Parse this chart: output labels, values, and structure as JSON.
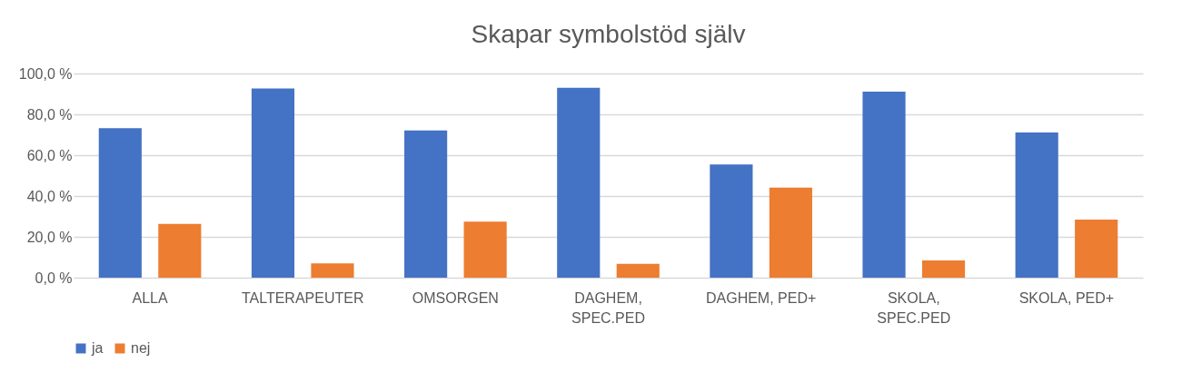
{
  "chart_data": {
    "type": "bar",
    "title": "Skapar symbolstöd själv",
    "categories": [
      "ALLA",
      "TALTERAPEUTER",
      "OMSORGEN",
      "DAGHEM, SPEC.PED",
      "DAGHEM, PED+",
      "SKOLA, SPEC.PED",
      "SKOLA, PED+"
    ],
    "series": [
      {
        "name": "ja",
        "color": "#4472c4",
        "values": [
          73.2,
          92.7,
          72.1,
          93.0,
          55.4,
          91.1,
          71.1
        ]
      },
      {
        "name": "nej",
        "color": "#ed7d31",
        "values": [
          26.3,
          7.0,
          27.5,
          6.8,
          44.1,
          8.5,
          28.4
        ]
      }
    ],
    "ylim": [
      0,
      100
    ],
    "yticks": [
      {
        "value": 0,
        "label": "0,0 %"
      },
      {
        "value": 20,
        "label": "20,0 %"
      },
      {
        "value": 40,
        "label": "40,0 %"
      },
      {
        "value": 60,
        "label": "60,0 %"
      },
      {
        "value": 80,
        "label": "80,0 %"
      },
      {
        "value": 100,
        "label": "100,0 %"
      }
    ],
    "grid": "y",
    "legend": "bottom"
  }
}
